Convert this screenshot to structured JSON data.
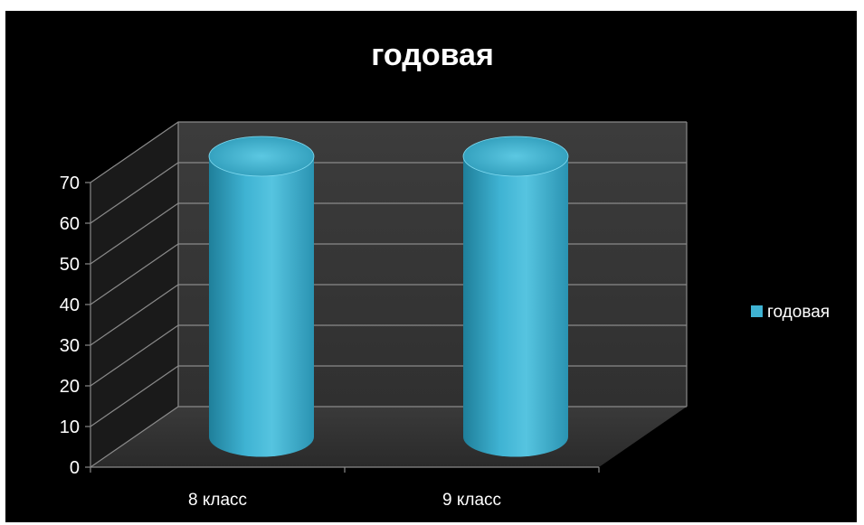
{
  "chart_data": {
    "type": "bar",
    "title": "годовая",
    "categories": [
      "8 класс",
      "9 класс"
    ],
    "series": [
      {
        "name": "годовая",
        "values": [
          69,
          69
        ]
      }
    ],
    "ylim": [
      0,
      70
    ],
    "yticks": [
      0,
      10,
      20,
      30,
      40,
      50,
      60,
      70
    ],
    "grid": true,
    "legend": "right",
    "colors": {
      "bar": "#3fb3d3",
      "bar_highlight": "#7fdaf0",
      "bar_shadow": "#1f7f9a",
      "wall": "#3a3a3a",
      "floor": "#333333",
      "grid": "#8a8a8a",
      "background": "#000000",
      "text": "#ffffff"
    }
  }
}
